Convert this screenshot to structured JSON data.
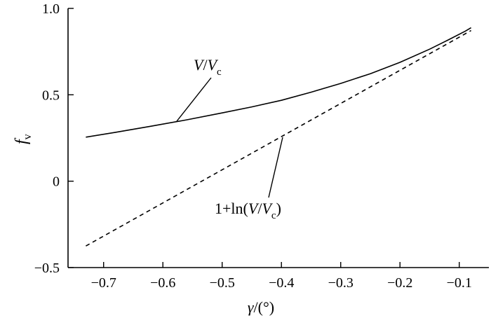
{
  "chart_data": {
    "type": "line",
    "xlabel": {
      "main": "γ",
      "rest": "/(°)"
    },
    "ylabel": {
      "main": "f",
      "sub": "v"
    },
    "xlim": [
      -0.76,
      -0.05
    ],
    "ylim": [
      -0.5,
      1.0
    ],
    "x_ticks": [
      -0.7,
      -0.6,
      -0.5,
      -0.4,
      -0.3,
      -0.2,
      -0.1
    ],
    "x_tick_labels": [
      "−0.7",
      "−0.6",
      "−0.5",
      "−0.4",
      "−0.3",
      "−0.2",
      "−0.1"
    ],
    "y_ticks": [
      -0.5,
      0,
      0.5,
      1.0
    ],
    "y_tick_labels": [
      "−0.5",
      "0",
      "0.5",
      "1.0"
    ],
    "grid": false,
    "legend": "none",
    "series": [
      {
        "style": "solid",
        "x": [
          -0.73,
          -0.68,
          -0.62,
          -0.56,
          -0.5,
          -0.45,
          -0.4,
          -0.35,
          -0.3,
          -0.25,
          -0.2,
          -0.15,
          -0.12,
          -0.09,
          -0.08
        ],
        "y": [
          0.255,
          0.283,
          0.318,
          0.355,
          0.395,
          0.43,
          0.468,
          0.515,
          0.566,
          0.622,
          0.688,
          0.764,
          0.815,
          0.868,
          0.888
        ]
      },
      {
        "style": "dashed",
        "x": [
          -0.73,
          -0.08
        ],
        "y": [
          -0.375,
          0.872
        ]
      }
    ],
    "annotations": [
      {
        "parts": [
          "V",
          "/",
          "V",
          "c"
        ],
        "target_series": 0,
        "target_x": -0.565
      },
      {
        "parts": [
          "1+ln(",
          "V",
          "/",
          "V",
          "c",
          ")"
        ],
        "target_series": 1,
        "target_x": -0.395
      }
    ]
  }
}
